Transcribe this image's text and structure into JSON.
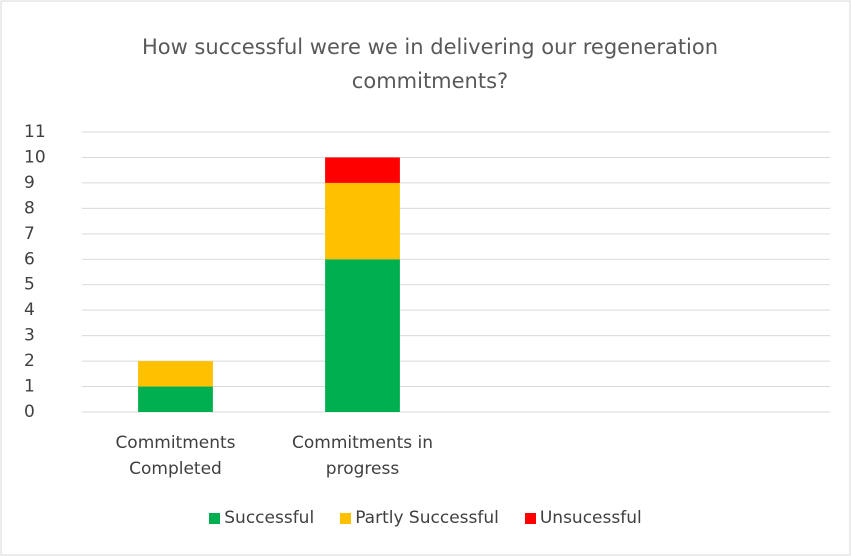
{
  "chart_data": {
    "type": "stacked_bar",
    "title": "How successful were we in delivering our regeneration commitments?",
    "categories": [
      "Commitments Completed",
      "Commitments in progress",
      null,
      null
    ],
    "series": [
      {
        "name": "Successful",
        "color": "#00b050",
        "values": [
          1,
          6,
          null,
          null
        ]
      },
      {
        "name": "Partly Successful",
        "color": "#ffc000",
        "values": [
          1,
          3,
          null,
          null
        ]
      },
      {
        "name": "Unsucessful",
        "color": "#ff0000",
        "values": [
          0,
          1,
          null,
          null
        ]
      }
    ],
    "ylim": [
      0,
      11
    ],
    "yticks": [
      0,
      1,
      2,
      3,
      4,
      5,
      6,
      7,
      8,
      9,
      10,
      11
    ],
    "grid": true,
    "legend": "bottom"
  }
}
